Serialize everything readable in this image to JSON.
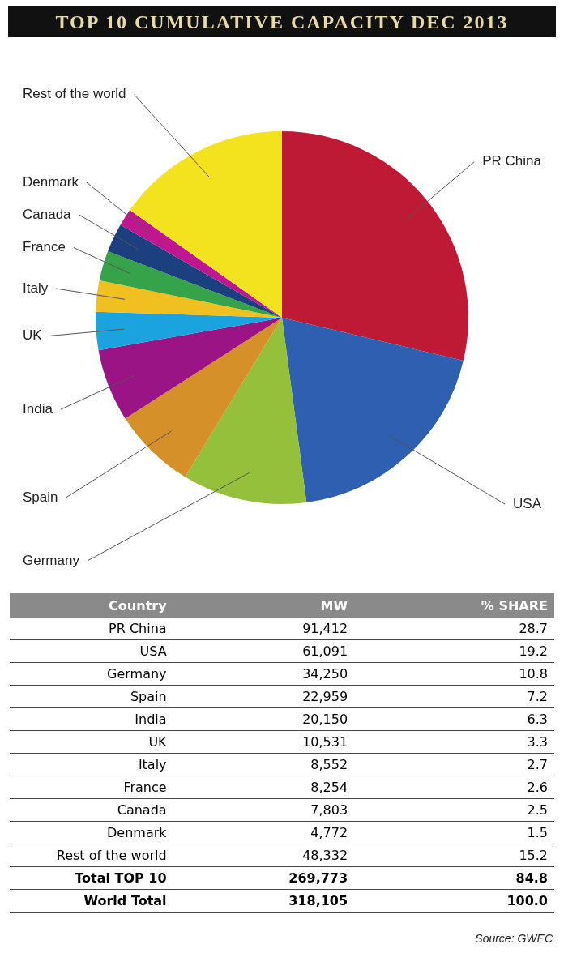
{
  "chart_data": [
    {
      "type": "pie",
      "title": "TOP 10 CUMULATIVE CAPACITY DEC 2013",
      "categories": [
        "PR China",
        "USA",
        "Germany",
        "Spain",
        "India",
        "UK",
        "Italy",
        "France",
        "Canada",
        "Denmark",
        "Rest of the world"
      ],
      "values": [
        28.7,
        19.2,
        10.8,
        7.2,
        6.3,
        3.3,
        2.7,
        2.6,
        2.5,
        1.5,
        15.2
      ],
      "colors": [
        "#be1a36",
        "#2e5fb1",
        "#95c03b",
        "#d6902a",
        "#9b1485",
        "#1ba3e0",
        "#f0c020",
        "#36a24a",
        "#1c3f7f",
        "#c0168f",
        "#f3e31f"
      ]
    },
    {
      "type": "other",
      "xlabel": "Country",
      "categories": [
        "PR China",
        "USA",
        "Germany",
        "Spain",
        "India",
        "UK",
        "Italy",
        "France",
        "Canada",
        "Denmark",
        "Rest of the world",
        "Total TOP 10",
        "World Total"
      ],
      "series": [
        {
          "name": "MW",
          "values": [
            91412,
            61091,
            34250,
            22959,
            20150,
            10531,
            8552,
            8254,
            7803,
            4772,
            48332,
            269773,
            318105
          ],
          "value_labels": [
            "91,412",
            "61,091",
            "34,250",
            "22,959",
            "20,150",
            "10,531",
            "8,552",
            "8,254",
            "7,803",
            "4,772",
            "48,332",
            "269,773",
            "318,105"
          ]
        },
        {
          "name": "% SHARE",
          "values": [
            28.7,
            19.2,
            10.8,
            7.2,
            6.3,
            3.3,
            2.7,
            2.6,
            2.5,
            1.5,
            15.2,
            84.8,
            100.0
          ],
          "value_labels": [
            "28.7",
            "19.2",
            "10.8",
            "7.2",
            "6.3",
            "3.3",
            "2.7",
            "2.6",
            "2.5",
            "1.5",
            "15.2",
            "84.8",
            "100.0"
          ]
        }
      ],
      "annotations": [
        "Source: GWEC"
      ]
    }
  ]
}
